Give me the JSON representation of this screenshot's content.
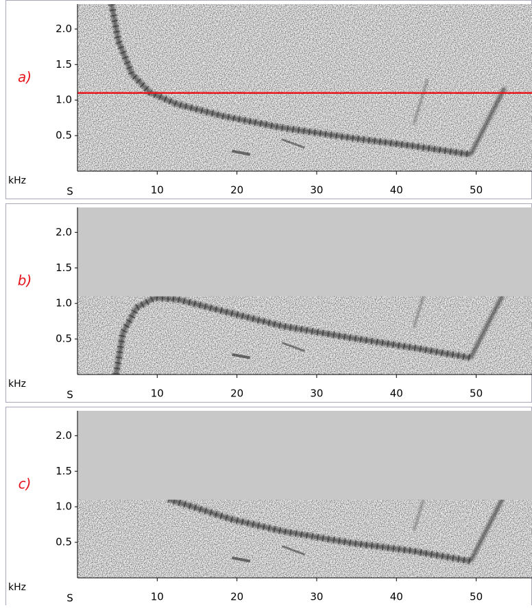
{
  "chart_data": [
    {
      "type": "spectrogram",
      "panel_label": "a)",
      "y_label": "kHz",
      "x_label": "S",
      "xlim": [
        0,
        57
      ],
      "ylim": [
        0,
        2.35
      ],
      "xticks": [
        10,
        20,
        30,
        40,
        50
      ],
      "yticks": [
        {
          "value": 2,
          "label": "2.0"
        },
        1.5,
        {
          "value": 1,
          "label": "1.0"
        },
        0.5
      ],
      "threshold": 1.1,
      "threshold_style": "line",
      "threshold_color": "#e8141b"
    },
    {
      "type": "spectrogram",
      "panel_label": "b)",
      "y_label": "kHz",
      "x_label": "S",
      "xlim": [
        0,
        57
      ],
      "ylim": [
        0,
        2.35
      ],
      "xticks": [
        10,
        20,
        30,
        40,
        50
      ],
      "yticks": [
        {
          "value": 2,
          "label": "2.0"
        },
        1.5,
        {
          "value": 1,
          "label": "1.0"
        },
        0.5
      ],
      "threshold": 1.1,
      "threshold_style": "mask",
      "threshold_color": "#c8c8c8"
    },
    {
      "type": "spectrogram",
      "panel_label": "c)",
      "y_label": "kHz",
      "x_label": "S",
      "xlim": [
        0,
        57
      ],
      "ylim": [
        0,
        2.35
      ],
      "xticks": [
        10,
        20,
        30,
        40,
        50
      ],
      "yticks": [
        {
          "value": 2,
          "label": "2.0"
        },
        1.5,
        {
          "value": 1,
          "label": "1.0"
        },
        0.5
      ],
      "threshold": 1.1,
      "threshold_style": "mask",
      "threshold_color": "#c8c8c8"
    }
  ]
}
